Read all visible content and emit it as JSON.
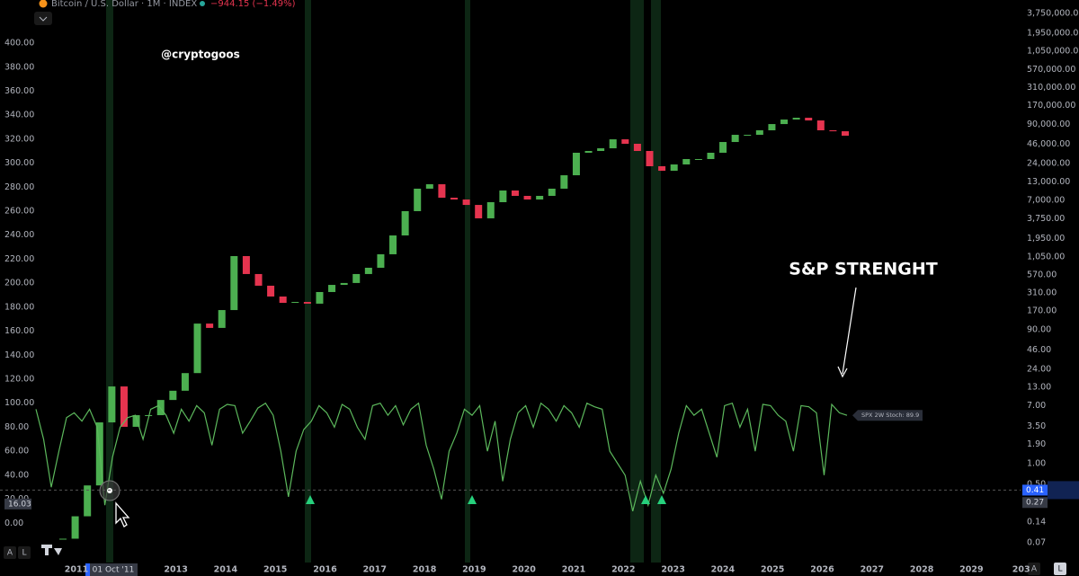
{
  "header": {
    "title": "Bitcoin / U.S. Dollar · 1M · INDEX",
    "change": "−944.15 (−1.49%)"
  },
  "controls": [
    "A",
    "L"
  ],
  "chart_data": {
    "type": "candlestick",
    "watermark": "@cryptogoos",
    "annotation": "S&P STRENGHT",
    "crosshair_date": "01 Oct '11",
    "crosshair_y": 16.03,
    "crosshair_y2": 0.27,
    "price_marker": 0.41,
    "price_marker_color": "#2962ff",
    "grid": false,
    "xticks": [
      "2011",
      "2013",
      "2014",
      "2015",
      "2016",
      "2017",
      "2018",
      "2019",
      "2020",
      "2021",
      "2022",
      "2023",
      "2024",
      "2025",
      "2026",
      "2027",
      "2028",
      "2029",
      "203"
    ],
    "ylim": [
      -32,
      430
    ],
    "yticks": [
      {
        "value": 0,
        "label": "0.00"
      },
      {
        "value": 20,
        "label": "20.00"
      },
      {
        "value": 40,
        "label": "40.00"
      },
      {
        "value": 60,
        "label": "60.00"
      },
      {
        "value": 80,
        "label": "80.00"
      },
      {
        "value": 100,
        "label": "100.00"
      },
      {
        "value": 120,
        "label": "120.00"
      },
      {
        "value": 140,
        "label": "140.00"
      },
      {
        "value": 160,
        "label": "160.00"
      },
      {
        "value": 180,
        "label": "180.00"
      },
      {
        "value": 200,
        "label": "200.00"
      },
      {
        "value": 220,
        "label": "220.00"
      },
      {
        "value": 240,
        "label": "240.00"
      },
      {
        "value": 260,
        "label": "260.00"
      },
      {
        "value": 280,
        "label": "280.00"
      },
      {
        "value": 300,
        "label": "300.00"
      },
      {
        "value": 320,
        "label": "320.00"
      },
      {
        "value": 340,
        "label": "340.00"
      },
      {
        "value": 360,
        "label": "360.00"
      },
      {
        "value": 380,
        "label": "380.00"
      },
      {
        "value": 400,
        "label": "400.00"
      }
    ],
    "y2lim": [
      0.037,
      4650000
    ],
    "y2_log": true,
    "y2ticks": [
      0.07,
      0.14,
      0.27,
      {
        "value": 0.5,
        "label": "0.50"
      },
      {
        "value": 1,
        "label": "1.00"
      },
      {
        "value": 1.9,
        "label": "1.90"
      },
      {
        "value": 3.5,
        "label": "3.50"
      },
      {
        "value": 7,
        "label": "7.00"
      },
      {
        "value": 13,
        "label": "13.00"
      },
      {
        "value": 24,
        "label": "24.00"
      },
      {
        "value": 46,
        "label": "46.00"
      },
      {
        "value": 90,
        "label": "90.00"
      },
      {
        "value": 170,
        "label": "170.00"
      },
      {
        "value": 310,
        "label": "310.00"
      },
      {
        "value": 570,
        "label": "570.00"
      },
      {
        "value": 1050,
        "label": "1,050.00"
      },
      {
        "value": 1950,
        "label": "1,950.00"
      },
      {
        "value": 3750,
        "label": "3,750.00"
      },
      {
        "value": 7000,
        "label": "7,000.00"
      },
      {
        "value": 13000,
        "label": "13,000.00"
      },
      {
        "value": 24000,
        "label": "24,000.00"
      },
      {
        "value": 46000,
        "label": "46,000.00"
      },
      {
        "value": 90000,
        "label": "90,000.00"
      },
      {
        "value": 170000,
        "label": "170,000.00"
      },
      {
        "value": 310000,
        "label": "310,000.00"
      },
      {
        "value": 570000,
        "label": "570,000.00"
      },
      {
        "value": 1050000,
        "label": "1,050,000.00"
      },
      {
        "value": 1950000,
        "label": "1,950,000.00"
      },
      {
        "value": 3750000,
        "label": "3,750,000.00"
      }
    ],
    "series": [
      {
        "name": "Bitcoin / U.S. Dollar · 1M · INDEX",
        "axis": "y2",
        "up_color": "#4caf50",
        "down_color": "#e5344f",
        "values": [
          0.08,
          0.17,
          0.48,
          4.0,
          13.4,
          3.45,
          5.1,
          5.1,
          8.5,
          11.6,
          21,
          111,
          96,
          175,
          1075,
          588,
          397,
          276,
          223,
          230,
          217,
          321,
          408,
          435,
          588,
          726,
          1143,
          2153,
          4876,
          10380,
          12050,
          7660,
          7210,
          6010,
          3830,
          6590,
          9760,
          8150,
          7210,
          8150,
          10380,
          16300,
          34760,
          36900,
          40380,
          54620,
          47000,
          36900,
          22080,
          18970,
          23450,
          28130,
          28130,
          34760,
          49900,
          63550,
          63550,
          73980,
          91230,
          106200,
          112800,
          103000,
          73980,
          71620,
          61670
        ]
      },
      {
        "name": "SPX 2W Stoch: 89.9",
        "color": "#5cb85c",
        "values": [
          95,
          70,
          30,
          60,
          88,
          92,
          85,
          95,
          80,
          15,
          55,
          80,
          88,
          90,
          70,
          95,
          98,
          90,
          75,
          95,
          85,
          98,
          92,
          65,
          95,
          99,
          98,
          75,
          85,
          96,
          100,
          90,
          60,
          22,
          60,
          78,
          85,
          98,
          92,
          80,
          99,
          95,
          80,
          70,
          98,
          100,
          90,
          98,
          82,
          95,
          100,
          65,
          45,
          20,
          60,
          75,
          95,
          90,
          98,
          60,
          85,
          35,
          70,
          92,
          98,
          80,
          100,
          95,
          85,
          98,
          92,
          80,
          100,
          97,
          95,
          60,
          50,
          40,
          10,
          35,
          15,
          40,
          25,
          45,
          75,
          98,
          90,
          95,
          75,
          55,
          98,
          100,
          80,
          95,
          60,
          99,
          98,
          90,
          85,
          60,
          98,
          97,
          92,
          40,
          99,
          92,
          89.9
        ]
      }
    ]
  }
}
